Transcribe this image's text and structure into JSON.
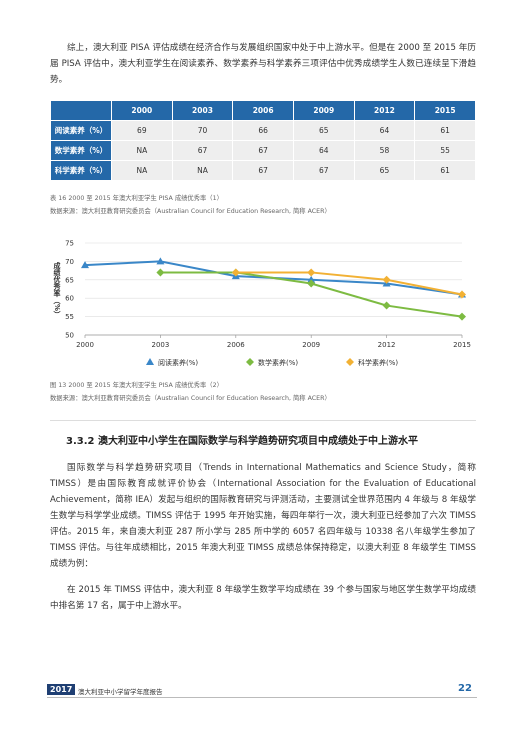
{
  "intro": "综上，澳大利亚 PISA 评估成绩在经济合作与发展组织国家中处于中上游水平。但是在 2000 至 2015 年历届 PISA 评估中，澳大利亚学生在阅读素养、数学素养与科学素养三项评估中优秀成绩学生人数已连续呈下滑趋势。",
  "table": {
    "columns": [
      "2000",
      "2003",
      "2006",
      "2009",
      "2012",
      "2015"
    ],
    "rows": [
      {
        "label": "阅读素养（%）",
        "cells": [
          "69",
          "70",
          "66",
          "65",
          "64",
          "61"
        ]
      },
      {
        "label": "数学素养（%）",
        "cells": [
          "NA",
          "67",
          "67",
          "64",
          "58",
          "55"
        ]
      },
      {
        "label": "科学素养（%）",
        "cells": [
          "NA",
          "NA",
          "67",
          "67",
          "65",
          "61"
        ]
      }
    ],
    "caption": "表 16 2000 至 2015 年澳大利亚学生 PISA 成绩优秀率（1）",
    "source": "数据来源：澳大利亚教育研究委员会（Australian Council for Education Research, 简称 ACER）"
  },
  "chart_data": {
    "type": "line",
    "y_label": "成绩优秀率（%）",
    "x": [
      2000,
      2003,
      2006,
      2009,
      2012,
      2015
    ],
    "xlim": [
      2000,
      2015
    ],
    "xticks": [
      2000,
      2003,
      2006,
      2009,
      2012,
      2015
    ],
    "ylim": [
      50,
      75
    ],
    "yticks": [
      50,
      55,
      60,
      65,
      70,
      75
    ],
    "grid": true,
    "legend": "bottom",
    "series": [
      {
        "name": "阅读素养(%)",
        "color": "#3a87c8",
        "marker": "triangle",
        "values": [
          69,
          70,
          66,
          65,
          64,
          61
        ]
      },
      {
        "name": "数学素养(%)",
        "color": "#7dbb42",
        "marker": "diamond",
        "values": [
          null,
          67,
          67,
          64,
          58,
          55
        ]
      },
      {
        "name": "科学素养(%)",
        "color": "#f2b134",
        "marker": "diamond",
        "values": [
          null,
          null,
          67,
          67,
          65,
          61
        ]
      }
    ],
    "caption": "图 13 2000 至 2015 年澳大利亚学生 PISA 成绩优秀率（2）",
    "source": "数据来源：澳大利亚教育研究委员会（Australian Council for Education Research, 简称 ACER）"
  },
  "section": {
    "heading": "3.3.2 澳大利亚中小学生在国际数学与科学趋势研究项目中成绩处于中上游水平",
    "paragraphs": [
      "国际数学与科学趋势研究项目（Trends in International Mathematics and Science Study，简称 TIMSS）是由国际教育成就评价协会（International Association for the Evaluation of Educational Achievement，简称 IEA）发起与组织的国际教育研究与评测活动，主要测试全世界范围内 4 年级与 8 年级学生数学与科学学业成绩。TIMSS 评估于 1995 年开始实施，每四年举行一次，澳大利亚已经参加了六次 TIMSS 评估。2015 年，来自澳大利亚 287 所小学与 285 所中学的 6057 名四年级与 10338 名八年级学生参加了 TIMSS 评估。与往年成绩相比，2015 年澳大利亚 TIMSS 成绩总体保持稳定，以澳大利亚 8 年级学生 TIMSS 成绩为例：",
      "在 2015 年 TIMSS 评估中，澳大利亚 8 年级学生数学平均成绩在 39 个参与国家与地区学生数学平均成绩中排名第 17 名，属于中上游水平。"
    ]
  },
  "footer": {
    "year": "2017",
    "title": "澳大利亚中小学留学年度报告",
    "page": "22"
  }
}
